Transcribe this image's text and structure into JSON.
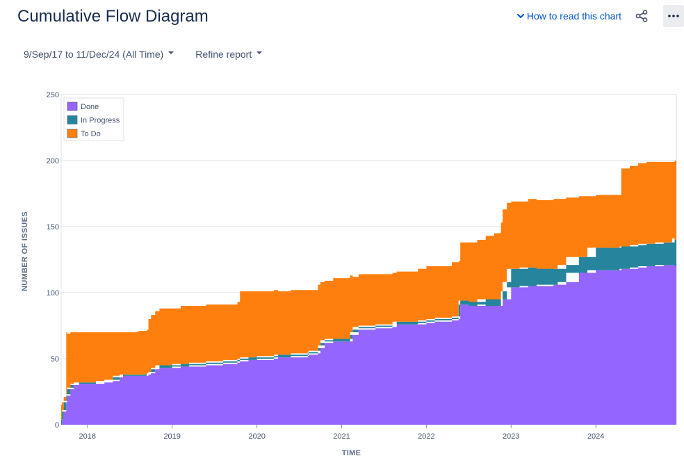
{
  "header": {
    "title": "Cumulative Flow Diagram",
    "help_link": "How to read this chart",
    "share_icon": "share-icon",
    "more_icon": "more-options-icon"
  },
  "filters": {
    "date_range": "9/Sep/17 to 11/Dec/24 (All Time)",
    "refine": "Refine report"
  },
  "colors": {
    "done": "#9466ff",
    "in_progress": "#26859c",
    "to_do": "#ff7f0e",
    "grid": "#dfe1e6",
    "link": "#0052cc"
  },
  "chart_data": {
    "type": "area",
    "stacked": true,
    "xlabel": "TIME",
    "ylabel": "NUMBER OF ISSUES",
    "xlim": [
      2017.69,
      2024.95
    ],
    "ylim": [
      0,
      250
    ],
    "y_ticks": [
      0,
      50,
      100,
      150,
      200,
      250
    ],
    "x_ticks": [
      {
        "value": 2018,
        "label": "2018"
      },
      {
        "value": 2019,
        "label": "2019"
      },
      {
        "value": 2020,
        "label": "2020"
      },
      {
        "value": 2021,
        "label": "2021"
      },
      {
        "value": 2022,
        "label": "2022"
      },
      {
        "value": 2023,
        "label": "2023"
      },
      {
        "value": 2024,
        "label": "2024"
      }
    ],
    "grid": true,
    "legend_position": "top-left",
    "x": [
      2017.69,
      2017.7,
      2017.72,
      2017.75,
      2017.76,
      2017.8,
      2017.84,
      2017.9,
      2017.95,
      2018.0,
      2018.1,
      2018.2,
      2018.3,
      2018.38,
      2018.42,
      2018.5,
      2018.6,
      2018.7,
      2018.72,
      2018.75,
      2018.8,
      2018.85,
      2018.9,
      2019.0,
      2019.1,
      2019.2,
      2019.4,
      2019.6,
      2019.77,
      2019.8,
      2019.9,
      2020.0,
      2020.2,
      2020.25,
      2020.4,
      2020.6,
      2020.61,
      2020.72,
      2020.75,
      2020.8,
      2020.9,
      2021.0,
      2021.1,
      2021.13,
      2021.2,
      2021.4,
      2021.6,
      2021.65,
      2021.8,
      2021.9,
      2022.0,
      2022.1,
      2022.3,
      2022.38,
      2022.4,
      2022.5,
      2022.6,
      2022.7,
      2022.8,
      2022.88,
      2022.9,
      2022.95,
      2023.0,
      2023.1,
      2023.2,
      2023.3,
      2023.5,
      2023.55,
      2023.65,
      2023.8,
      2023.9,
      2024.0,
      2024.1,
      2024.2,
      2024.28,
      2024.3,
      2024.4,
      2024.5,
      2024.6,
      2024.7,
      2024.8,
      2024.9,
      2024.93,
      2024.95
    ],
    "series": [
      {
        "name": "Done",
        "values": [
          0,
          4,
          10,
          17,
          22,
          27,
          30,
          31,
          31,
          31,
          31,
          32,
          33,
          36,
          37,
          37,
          37,
          37,
          38,
          39,
          42,
          43,
          43,
          43,
          44,
          44,
          45,
          46,
          47,
          48,
          49,
          49,
          50,
          51,
          51,
          52,
          53,
          54,
          58,
          62,
          63,
          63,
          63,
          68,
          72,
          73,
          74,
          76,
          76,
          76,
          77,
          78,
          79,
          80,
          91,
          91,
          90,
          91,
          90,
          90,
          95,
          95,
          104,
          104,
          105,
          105,
          106,
          106,
          108,
          115,
          115,
          117,
          117,
          117,
          117,
          118,
          118,
          119,
          120,
          120,
          121,
          121,
          121,
          120
        ]
      },
      {
        "name": "In Progress",
        "values": [
          0,
          0,
          1,
          1,
          1,
          1,
          1,
          1,
          1,
          1,
          1,
          1,
          1,
          1,
          1,
          1,
          1,
          1,
          1,
          1,
          1,
          2,
          2,
          2,
          2,
          2,
          2,
          2,
          2,
          2,
          2,
          2,
          2,
          2,
          2,
          2,
          2,
          2,
          2,
          2,
          2,
          2,
          2,
          2,
          2,
          2,
          2,
          2,
          2,
          2,
          2,
          2,
          2,
          2,
          3,
          3,
          3,
          4,
          5,
          5,
          6,
          13,
          14,
          14,
          14,
          14,
          12,
          12,
          13,
          12,
          12,
          17,
          17,
          17,
          17,
          17,
          17,
          17,
          17,
          17,
          17,
          17,
          20,
          20
        ]
      },
      {
        "name": "To Do",
        "values": [
          15,
          13,
          10,
          52,
          46,
          42,
          39,
          38,
          38,
          38,
          38,
          37,
          36,
          33,
          32,
          32,
          33,
          34,
          41,
          43,
          43,
          43,
          43,
          43,
          44,
          44,
          44,
          43,
          44,
          51,
          50,
          50,
          50,
          48,
          49,
          48,
          47,
          50,
          48,
          45,
          46,
          46,
          48,
          42,
          40,
          39,
          39,
          38,
          38,
          40,
          41,
          40,
          42,
          42,
          44,
          44,
          47,
          48,
          50,
          58,
          62,
          60,
          51,
          51,
          52,
          51,
          53,
          53,
          51,
          46,
          46,
          40,
          40,
          40,
          40,
          59,
          61,
          62,
          62,
          62,
          61,
          61,
          59,
          66
        ]
      }
    ]
  }
}
